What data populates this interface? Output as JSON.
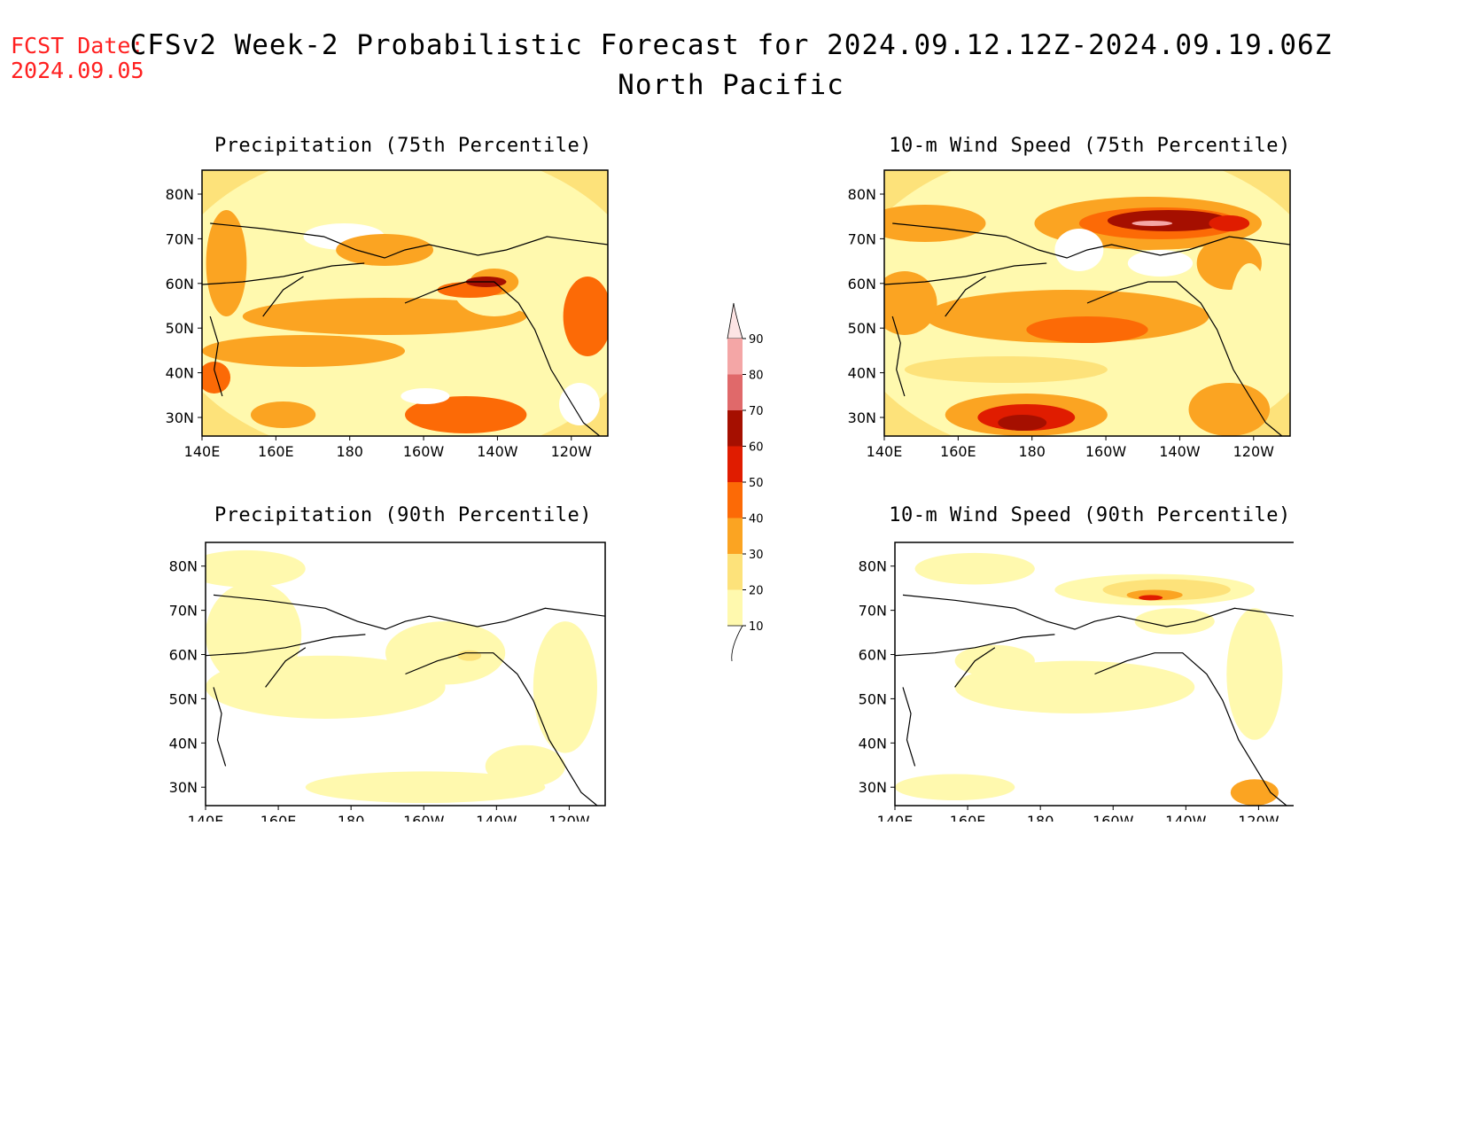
{
  "header": {
    "fcst_label": "FCST Date:",
    "fcst_date": "2024.09.05",
    "title": "CFSv2 Week-2 Probabilistic Forecast for 2024.09.12.12Z-2024.09.19.06Z",
    "region": "North Pacific"
  },
  "lon_ticks": [
    "140E",
    "160E",
    "180",
    "160W",
    "140W",
    "120W"
  ],
  "lat_ticks": [
    "80N",
    "70N",
    "60N",
    "50N",
    "40N",
    "30N"
  ],
  "panels": [
    {
      "id": "precip75",
      "title": "Precipitation (75th Percentile)"
    },
    {
      "id": "wind75",
      "title": "10-m Wind Speed (75th Percentile)"
    },
    {
      "id": "precip90",
      "title": "Precipitation (90th Percentile)"
    },
    {
      "id": "wind90",
      "title": "10-m Wind Speed (90th Percentile)"
    }
  ],
  "colorbar": {
    "levels": [
      "10",
      "20",
      "30",
      "40",
      "50",
      "60",
      "70",
      "80",
      "90"
    ],
    "colors": [
      "#fff9ae",
      "#fde27a",
      "#fba422",
      "#fc6a06",
      "#e01c00",
      "#a50f00",
      "#e0696a",
      "#f4a6a6",
      "#fde4e4"
    ]
  }
}
